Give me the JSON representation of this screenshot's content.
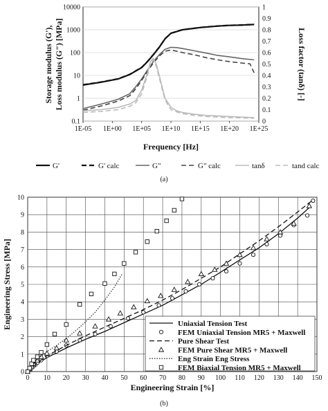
{
  "chart_data": [
    {
      "type": "line",
      "panel_label": "(a)",
      "xlabel": "Frequency [Hz]",
      "ylabel_lines": [
        "Storage modulus (G'),",
        "Loss modulus (G\") [MPa]"
      ],
      "ylabel2": "Loss factor (tanδ) [-]",
      "x_scale": "log",
      "y_scale": "log",
      "x_ticks": [
        "1E-05",
        "1E+00",
        "1E+05",
        "1E+10",
        "1E+15",
        "1E+20",
        "1E+25"
      ],
      "y_ticks": [
        "0.1",
        "1",
        "10",
        "100",
        "1000",
        "10000"
      ],
      "y2_ticks": [
        "0",
        "0.1",
        "0.2",
        "0.3",
        "0.4",
        "0.5",
        "0.6",
        "0.7",
        "0.8",
        "0.9",
        "1"
      ],
      "xlim_log10": [
        -5,
        25
      ],
      "ylim_log10": [
        -1,
        4
      ],
      "y2lim": [
        0,
        1
      ],
      "grid": "horizontal major",
      "legend_position": "bottom",
      "series": [
        {
          "name": "G'",
          "axis": "left",
          "style": "solid",
          "color": "#111111",
          "width": 2.2,
          "x_log10": [
            -5,
            -2,
            1,
            3,
            5,
            6,
            7,
            8,
            9,
            10,
            12,
            15,
            18,
            20,
            22,
            24.2
          ],
          "y": [
            3.8,
            5,
            7,
            11,
            22,
            40,
            80,
            170,
            400,
            700,
            1000,
            1250,
            1450,
            1550,
            1600,
            1700
          ]
        },
        {
          "name": "G' calc",
          "axis": "left",
          "style": "dashed",
          "color": "#111111",
          "width": 2.2,
          "x_log10": [
            -5,
            -2,
            1,
            3,
            5,
            6,
            7,
            8,
            9,
            10,
            12,
            15,
            18,
            20,
            22,
            24.2
          ],
          "y": [
            3.9,
            5.1,
            7.1,
            11.2,
            22.5,
            41,
            82,
            172,
            405,
            705,
            1010,
            1260,
            1460,
            1560,
            1620,
            1710
          ]
        },
        {
          "name": "G\"",
          "axis": "left",
          "style": "solid",
          "color": "#666666",
          "width": 1.6,
          "x_log10": [
            -5,
            -2,
            1,
            3,
            4,
            5,
            6,
            7,
            8,
            9,
            10,
            11,
            12,
            14,
            16,
            18,
            20,
            22,
            24.2
          ],
          "y": [
            0.35,
            0.55,
            0.9,
            1.6,
            3.2,
            7,
            17,
            40,
            80,
            140,
            170,
            165,
            150,
            120,
            95,
            75,
            65,
            55,
            48
          ]
        },
        {
          "name": "G\" calc",
          "axis": "left",
          "style": "dashed",
          "color": "#444444",
          "width": 1.6,
          "x_log10": [
            -5,
            -2,
            1,
            3,
            4,
            5,
            6,
            7,
            8,
            9,
            10,
            11,
            12,
            14,
            16,
            18,
            20,
            22,
            23.5,
            24.2
          ],
          "y": [
            0.3,
            0.45,
            0.75,
            1.3,
            2.6,
            6,
            15,
            35,
            70,
            115,
            130,
            115,
            100,
            80,
            60,
            48,
            40,
            35,
            32,
            13
          ]
        },
        {
          "name": "tanδ",
          "axis": "right",
          "style": "solid",
          "color": "#bbbbbb",
          "width": 1.6,
          "x_log10": [
            -5,
            -2,
            1,
            3,
            4,
            5,
            6,
            6.5,
            7,
            7.5,
            8,
            8.5,
            9,
            9.5,
            10,
            11,
            12,
            14,
            16,
            18,
            20,
            22,
            24.2
          ],
          "y": [
            0.09,
            0.1,
            0.12,
            0.15,
            0.18,
            0.27,
            0.42,
            0.52,
            0.55,
            0.5,
            0.4,
            0.3,
            0.2,
            0.16,
            0.12,
            0.09,
            0.075,
            0.06,
            0.05,
            0.045,
            0.04,
            0.035,
            0.03
          ]
        },
        {
          "name": "tand calc",
          "axis": "right",
          "style": "dashed",
          "color": "#bbbbbb",
          "width": 1.6,
          "x_log10": [
            -5,
            -2,
            1,
            3,
            4,
            5,
            6,
            6.5,
            7,
            7.5,
            8,
            8.5,
            9,
            9.5,
            10,
            11,
            12,
            14,
            16,
            18,
            20,
            22,
            24.2
          ],
          "y": [
            0.075,
            0.085,
            0.1,
            0.13,
            0.16,
            0.24,
            0.4,
            0.5,
            0.54,
            0.48,
            0.38,
            0.28,
            0.19,
            0.14,
            0.1,
            0.08,
            0.065,
            0.05,
            0.04,
            0.035,
            0.03,
            0.028,
            0.025
          ]
        }
      ]
    },
    {
      "type": "scatter",
      "panel_label": "(b)",
      "xlabel": "Engineering Strain [%]",
      "ylabel": "Engineering Stress [MPa]",
      "xlim": [
        0,
        150
      ],
      "ylim": [
        0,
        10
      ],
      "x_ticks": [
        0,
        10,
        20,
        30,
        40,
        50,
        60,
        70,
        80,
        90,
        100,
        110,
        120,
        130,
        140,
        150
      ],
      "y_ticks": [
        0,
        1,
        2,
        3,
        4,
        5,
        6,
        7,
        8,
        9,
        10
      ],
      "grid": "major both",
      "legend_position": "bottom-right",
      "series": [
        {
          "name": "Uniaxial Tension Test",
          "kind": "line",
          "style": "solid",
          "color": "#111111",
          "x": [
            0,
            5,
            10,
            20,
            30,
            40,
            50,
            60,
            70,
            80,
            90,
            100,
            110,
            120,
            130,
            140,
            147
          ],
          "y": [
            0,
            0.45,
            0.8,
            1.35,
            1.85,
            2.3,
            2.8,
            3.3,
            3.8,
            4.4,
            5.0,
            5.7,
            6.4,
            7.1,
            7.9,
            8.8,
            9.5
          ]
        },
        {
          "name": "FEM Uniaxial Tension MR5 + Maxwell",
          "kind": "marker",
          "marker": "circle",
          "x": [
            0,
            1,
            2,
            3,
            4,
            5,
            7,
            10,
            15,
            20,
            27,
            35,
            43,
            52,
            60,
            68,
            75,
            82,
            89,
            96,
            103,
            110,
            117,
            124,
            131,
            138,
            145,
            148
          ],
          "y": [
            0,
            0.1,
            0.2,
            0.3,
            0.4,
            0.5,
            0.65,
            0.9,
            1.15,
            1.5,
            1.8,
            2.15,
            2.6,
            3.05,
            3.4,
            3.8,
            4.2,
            4.6,
            5.0,
            5.35,
            5.75,
            6.2,
            6.7,
            7.3,
            7.8,
            8.4,
            8.95,
            9.8
          ]
        },
        {
          "name": "Pure Shear Test",
          "kind": "line",
          "style": "dashed",
          "color": "#111111",
          "x": [
            0,
            5,
            10,
            20,
            30,
            40,
            50,
            60,
            70,
            80,
            90,
            100,
            110,
            120,
            130,
            140,
            148
          ],
          "y": [
            0,
            0.5,
            0.9,
            1.5,
            2.05,
            2.55,
            3.05,
            3.55,
            4.1,
            4.7,
            5.35,
            6.0,
            6.75,
            7.5,
            8.3,
            9.15,
            9.85
          ]
        },
        {
          "name": "FEM Pure Shear MR5 + Maxwell",
          "kind": "marker",
          "marker": "triangle",
          "x": [
            0,
            1,
            2,
            3,
            5,
            7,
            10,
            15,
            20,
            27,
            35,
            42,
            48,
            55,
            62,
            69,
            76,
            83,
            90,
            97,
            103,
            110,
            117,
            124,
            131,
            138,
            146
          ],
          "y": [
            0,
            0.15,
            0.3,
            0.45,
            0.65,
            0.85,
            1.05,
            1.35,
            1.8,
            2.2,
            2.6,
            3.0,
            3.35,
            3.7,
            4.05,
            4.35,
            4.7,
            5.15,
            5.6,
            5.85,
            6.2,
            6.7,
            7.1,
            7.6,
            8.0,
            8.5,
            9.5
          ]
        },
        {
          "name": "Eng Strain Eng Stress",
          "kind": "line",
          "style": "dotted",
          "color": "#333333",
          "x": [
            0,
            3,
            6,
            10,
            15,
            20,
            25,
            30,
            35,
            40,
            45,
            49
          ],
          "y": [
            0,
            0.45,
            0.8,
            1.15,
            1.5,
            1.9,
            2.35,
            2.85,
            3.4,
            4.1,
            4.85,
            5.6
          ]
        },
        {
          "name": "FEM Biaxial Tension MR5 + Maxwell",
          "kind": "marker",
          "marker": "square",
          "x": [
            0,
            1,
            2,
            3,
            5,
            7,
            10,
            14,
            20,
            27,
            33,
            40,
            45,
            50,
            56,
            62,
            67,
            72,
            76,
            80
          ],
          "y": [
            0,
            0.2,
            0.45,
            0.65,
            0.85,
            1.1,
            1.55,
            2.15,
            2.7,
            3.85,
            4.45,
            5.05,
            5.6,
            6.2,
            6.85,
            7.45,
            8.05,
            8.65,
            9.25,
            9.9
          ]
        }
      ]
    }
  ]
}
